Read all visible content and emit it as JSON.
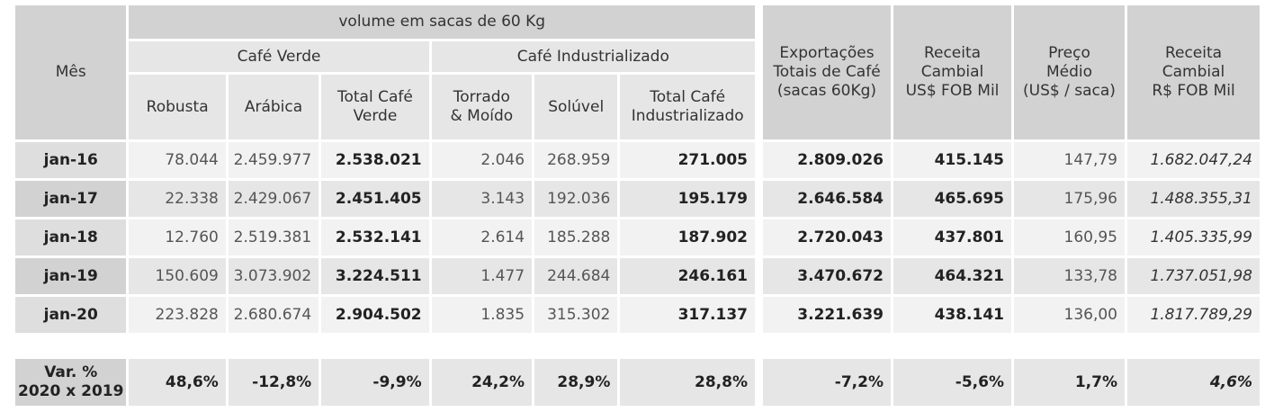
{
  "left_table": {
    "top_header": "volume em sacas de 60 Kg",
    "group_headers": [
      "Café Verde",
      "Café Industrializado"
    ],
    "month_header": "Mês",
    "columns": [
      "Robusta",
      "Arábica",
      "Total Café Verde",
      "Torrado & Moído",
      "Solúvel",
      "Total Café Industrializado"
    ],
    "column_lines": [
      [
        "Robusta"
      ],
      [
        "Arábica"
      ],
      [
        "Total Café",
        "Verde"
      ],
      [
        "Torrado",
        "& Moído"
      ],
      [
        "Solúvel"
      ],
      [
        "Total Café",
        "Industrializado"
      ]
    ]
  },
  "right_table": {
    "columns": [
      [
        "Exportações",
        "Totais de Café",
        "(sacas 60Kg)"
      ],
      [
        "Receita",
        "Cambial",
        "US$ FOB Mil"
      ],
      [
        "Preço",
        "Médio",
        "(US$ / saca)"
      ],
      [
        "Receita",
        "Cambial",
        "R$ FOB Mil"
      ]
    ]
  },
  "rows": [
    {
      "month": "jan-16",
      "left": [
        "78.044",
        "2.459.977",
        "2.538.021",
        "2.046",
        "268.959",
        "271.005"
      ],
      "right": [
        "2.809.026",
        "415.145",
        "147,79",
        "1.682.047,24"
      ]
    },
    {
      "month": "jan-17",
      "left": [
        "22.338",
        "2.429.067",
        "2.451.405",
        "3.143",
        "192.036",
        "195.179"
      ],
      "right": [
        "2.646.584",
        "465.695",
        "175,96",
        "1.488.355,31"
      ]
    },
    {
      "month": "jan-18",
      "left": [
        "12.760",
        "2.519.381",
        "2.532.141",
        "2.614",
        "185.288",
        "187.902"
      ],
      "right": [
        "2.720.043",
        "437.801",
        "160,95",
        "1.405.335,99"
      ]
    },
    {
      "month": "jan-19",
      "left": [
        "150.609",
        "3.073.902",
        "3.224.511",
        "1.477",
        "244.684",
        "246.161"
      ],
      "right": [
        "3.470.672",
        "464.321",
        "133,78",
        "1.737.051,98"
      ]
    },
    {
      "month": "jan-20",
      "left": [
        "223.828",
        "2.680.674",
        "2.904.502",
        "1.835",
        "315.302",
        "317.137"
      ],
      "right": [
        "3.221.639",
        "438.141",
        "136,00",
        "1.817.789,29"
      ]
    }
  ],
  "variation": {
    "label_lines": [
      "Var. %",
      "2020 x 2019"
    ],
    "left": [
      "48,6%",
      "-12,8%",
      "-9,9%",
      "24,2%",
      "28,9%",
      "28,8%"
    ],
    "right": [
      "-7,2%",
      "-5,6%",
      "1,7%",
      "4,6%"
    ]
  }
}
